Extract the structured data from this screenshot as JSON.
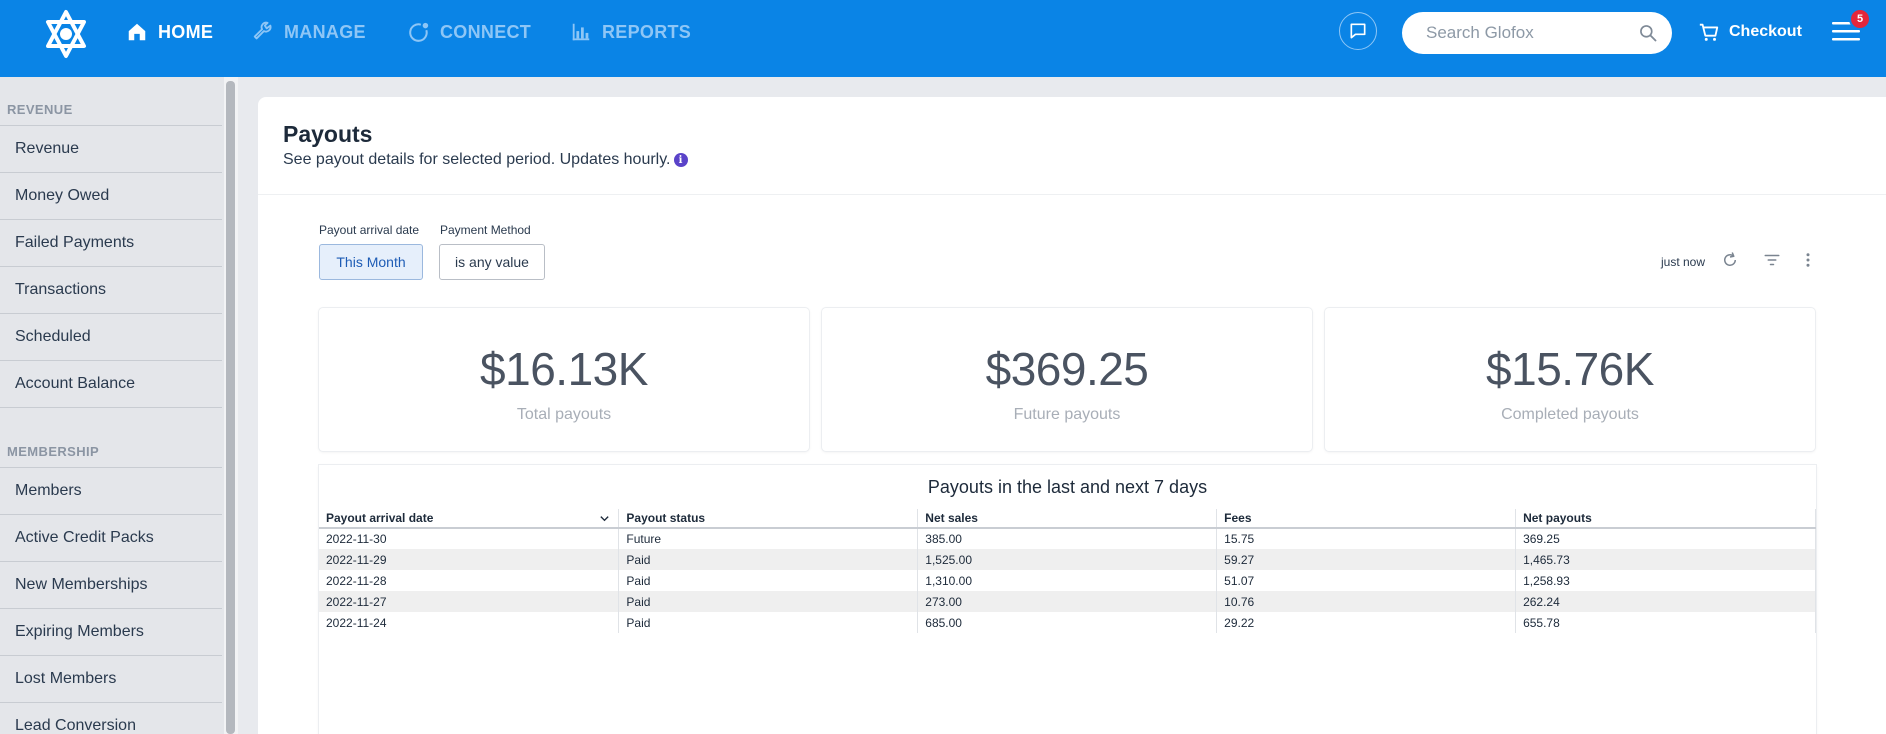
{
  "nav": {
    "items": [
      {
        "label": "HOME"
      },
      {
        "label": "MANAGE"
      },
      {
        "label": "CONNECT"
      },
      {
        "label": "REPORTS"
      }
    ],
    "search_placeholder": "Search Glofox",
    "checkout_label": "Checkout",
    "notification_count": "5"
  },
  "sidebar": {
    "sections": [
      {
        "title": "REVENUE",
        "items": [
          "Revenue",
          "Money Owed",
          "Failed Payments",
          "Transactions",
          "Scheduled",
          "Account Balance"
        ]
      },
      {
        "title": "MEMBERSHIP",
        "items": [
          "Members",
          "Active Credit Packs",
          "New Memberships",
          "Expiring Members",
          "Lost Members",
          "Lead Conversion"
        ]
      }
    ]
  },
  "page": {
    "title": "Payouts",
    "subtitle": "See payout details for selected period. Updates hourly."
  },
  "filters": {
    "date_label": "Payout arrival date",
    "date_value": "This Month",
    "method_label": "Payment Method",
    "method_value": "is any value",
    "refresh_text": "just now"
  },
  "kpis": [
    {
      "value": "$16.13K",
      "label": "Total payouts"
    },
    {
      "value": "$369.25",
      "label": "Future payouts"
    },
    {
      "value": "$15.76K",
      "label": "Completed payouts"
    }
  ],
  "table": {
    "title": "Payouts in the last and next 7 days",
    "columns": [
      "Payout arrival date",
      "Payout status",
      "Net sales",
      "Fees",
      "Net payouts"
    ],
    "rows": [
      [
        "2022-11-30",
        "Future",
        "385.00",
        "15.75",
        "369.25"
      ],
      [
        "2022-11-29",
        "Paid",
        "1,525.00",
        "59.27",
        "1,465.73"
      ],
      [
        "2022-11-28",
        "Paid",
        "1,310.00",
        "51.07",
        "1,258.93"
      ],
      [
        "2022-11-27",
        "Paid",
        "273.00",
        "10.76",
        "262.24"
      ],
      [
        "2022-11-24",
        "Paid",
        "685.00",
        "29.22",
        "655.78"
      ]
    ]
  },
  "colors": {
    "brand_blue": "#0a84e6",
    "nav_inactive": "#8ec6f6",
    "badge_red": "#e3263a",
    "info_purple": "#5a43c9"
  }
}
